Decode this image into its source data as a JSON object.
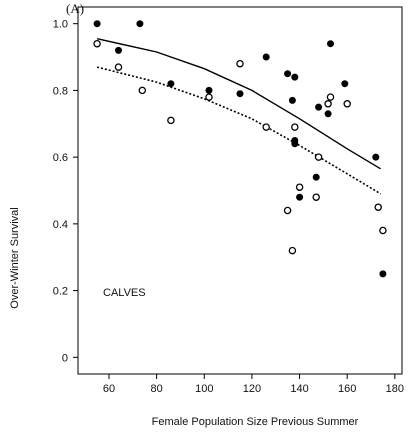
{
  "chart_data": {
    "type": "scatter",
    "panel_label": "(A)",
    "xlabel": "Female Population Size Previous Summer",
    "ylabel": "Over-Winter Survival",
    "annotation": "CALVES",
    "xlim": [
      47,
      183
    ],
    "ylim": [
      -0.05,
      1.05
    ],
    "x_ticks": [
      60,
      80,
      100,
      120,
      140,
      160,
      180
    ],
    "y_ticks": [
      0,
      0.2,
      0.4,
      0.6,
      0.8,
      1.0
    ],
    "y_tick_labels": [
      "0",
      "0.2",
      "0.4",
      "0.6",
      "0.8",
      "1.0"
    ],
    "grid": false,
    "series": [
      {
        "marker": "filled-circle",
        "color": "#000000",
        "points": [
          [
            55,
            1.0
          ],
          [
            64,
            0.92
          ],
          [
            73,
            1.0
          ],
          [
            86,
            0.82
          ],
          [
            102,
            0.8
          ],
          [
            115,
            0.79
          ],
          [
            126,
            0.9
          ],
          [
            135,
            0.85
          ],
          [
            137,
            0.77
          ],
          [
            138,
            0.84
          ],
          [
            138,
            0.65
          ],
          [
            138,
            0.64
          ],
          [
            140,
            0.48
          ],
          [
            147,
            0.54
          ],
          [
            148,
            0.75
          ],
          [
            152,
            0.73
          ],
          [
            153,
            0.94
          ],
          [
            159,
            0.82
          ],
          [
            172,
            0.6
          ],
          [
            175,
            0.25
          ]
        ]
      },
      {
        "marker": "open-circle",
        "color": "#000000",
        "points": [
          [
            55,
            0.94
          ],
          [
            64,
            0.87
          ],
          [
            74,
            0.8
          ],
          [
            86,
            0.71
          ],
          [
            102,
            0.78
          ],
          [
            115,
            0.88
          ],
          [
            126,
            0.69
          ],
          [
            135,
            0.44
          ],
          [
            137,
            0.32
          ],
          [
            138,
            0.69
          ],
          [
            140,
            0.51
          ],
          [
            147,
            0.48
          ],
          [
            148,
            0.6
          ],
          [
            152,
            0.76
          ],
          [
            153,
            0.78
          ],
          [
            160,
            0.76
          ],
          [
            173,
            0.45
          ],
          [
            175,
            0.38
          ]
        ]
      }
    ],
    "fits": [
      {
        "style": "solid",
        "points": [
          [
            55,
            0.955
          ],
          [
            80,
            0.915
          ],
          [
            100,
            0.865
          ],
          [
            120,
            0.8
          ],
          [
            140,
            0.715
          ],
          [
            160,
            0.625
          ],
          [
            174,
            0.565
          ]
        ]
      },
      {
        "style": "dotted",
        "points": [
          [
            55,
            0.87
          ],
          [
            80,
            0.825
          ],
          [
            100,
            0.775
          ],
          [
            120,
            0.715
          ],
          [
            140,
            0.635
          ],
          [
            160,
            0.55
          ],
          [
            174,
            0.49
          ]
        ]
      }
    ]
  }
}
